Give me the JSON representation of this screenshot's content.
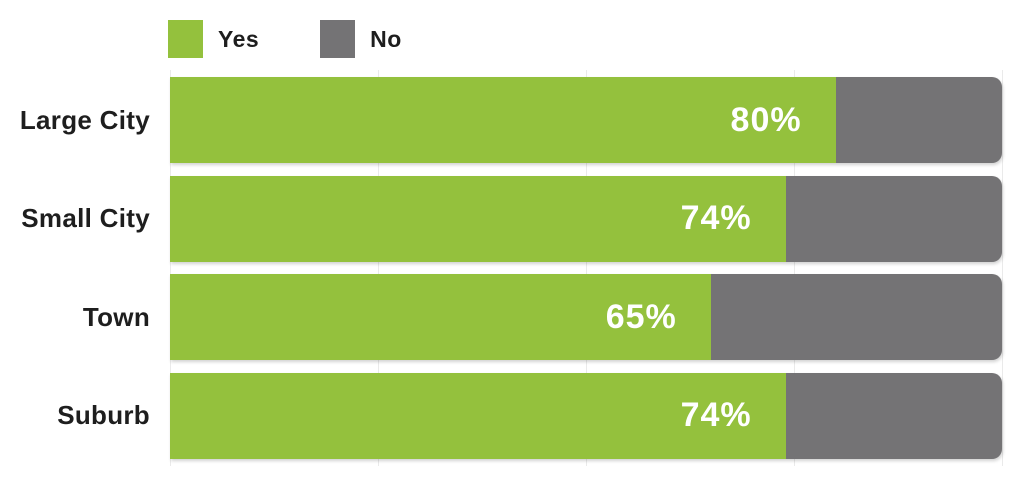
{
  "chart_data": {
    "type": "bar",
    "orientation": "horizontal",
    "stacked": true,
    "title": "",
    "categories": [
      "Large City",
      "Small City",
      "Town",
      "Suburb"
    ],
    "series": [
      {
        "name": "Yes",
        "color": "#94C13D",
        "values": [
          80,
          74,
          65,
          74
        ]
      },
      {
        "name": "No",
        "color": "#747375",
        "values": [
          20,
          26,
          35,
          26
        ]
      }
    ],
    "value_labels": [
      "80%",
      "74%",
      "65%",
      "74%"
    ],
    "xlim": [
      0,
      100
    ],
    "gridlines": {
      "show": true,
      "positions_pct": [
        0,
        25,
        50,
        75,
        100
      ]
    },
    "legend_position": "top-left",
    "category_label_color": "#1E1E1E",
    "value_label_color": "#FFFFFF",
    "background_color": "#FFFFFF"
  }
}
